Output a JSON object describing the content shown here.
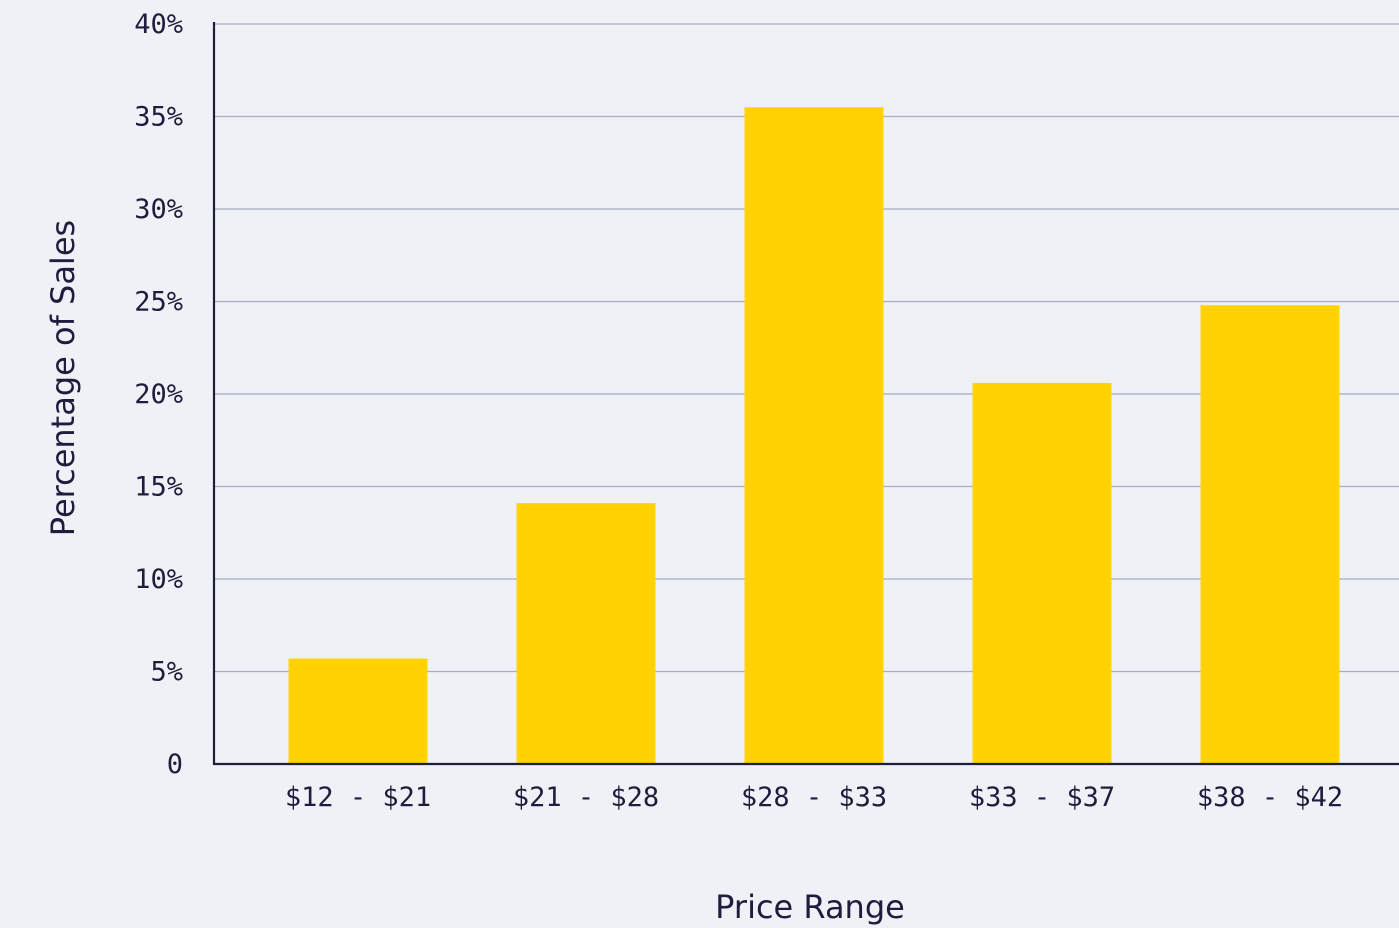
{
  "chart_data": {
    "type": "bar",
    "title": "",
    "xlabel": "Price Range",
    "ylabel": "Percentage of Sales",
    "categories": [
      "$12 - $21",
      "$21 - $28",
      "$28 - $33",
      "$33 - $37",
      "$38 - $42"
    ],
    "values": [
      5.7,
      14.1,
      35.5,
      20.6,
      24.8
    ],
    "ylim": [
      0,
      40
    ],
    "yticks": [
      {
        "value": 0,
        "label": "0"
      },
      {
        "value": 5,
        "label": "5%"
      },
      {
        "value": 10,
        "label": "10%"
      },
      {
        "value": 15,
        "label": "15%"
      },
      {
        "value": 20,
        "label": "20%"
      },
      {
        "value": 25,
        "label": "25%"
      },
      {
        "value": 30,
        "label": "30%"
      },
      {
        "value": 35,
        "label": "35%"
      },
      {
        "value": 40,
        "label": "40%"
      }
    ],
    "grid": true,
    "colors": {
      "bar": "#ffd200",
      "grid": "#a9adbf",
      "axis": "#1f1d3d",
      "text": "#1f1d3d",
      "background": "#eef2f6"
    }
  }
}
